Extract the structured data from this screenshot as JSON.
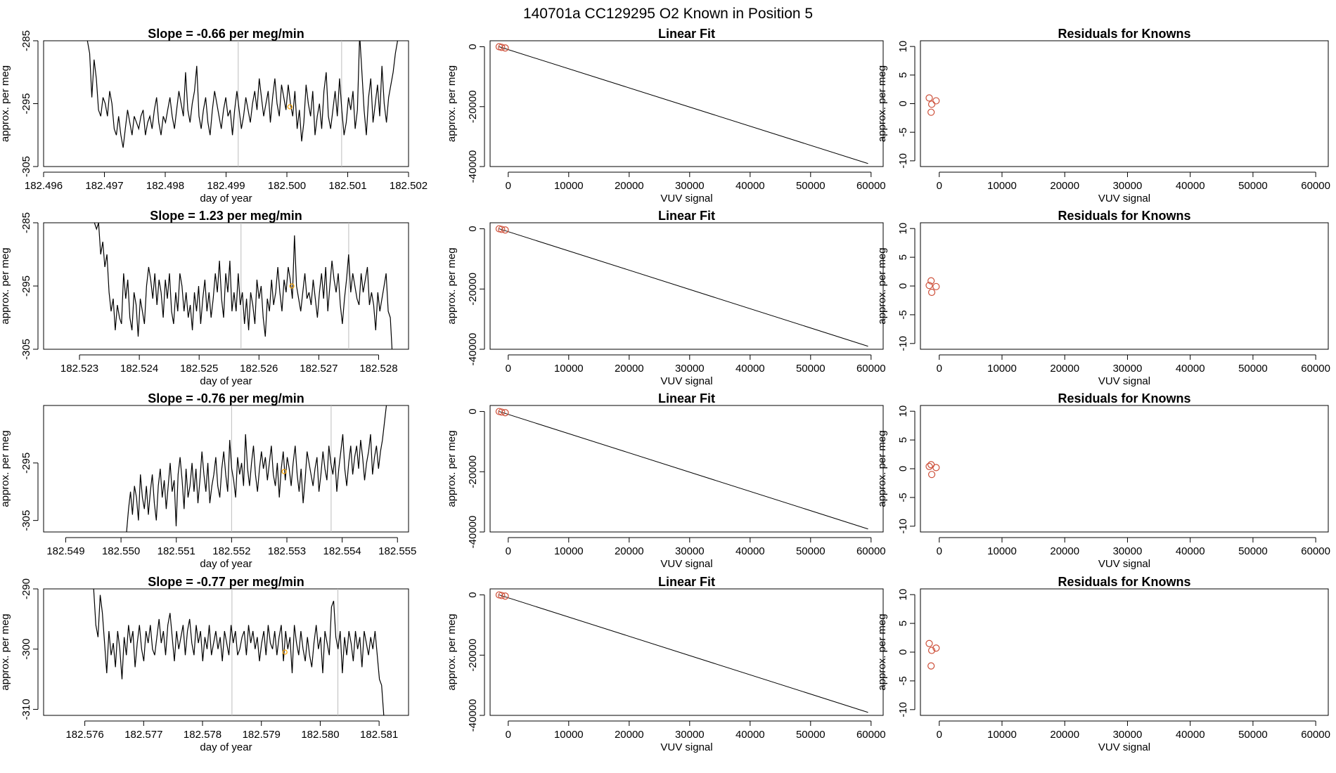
{
  "page_title": "140701a      CC129295    O2 Known in Position  5",
  "colors": {
    "line": "#000000",
    "marker": "#cd4f39",
    "highlight": "#ffa500",
    "vline": "#bdbdbd",
    "axis": "#000000"
  },
  "chart_data": [
    {
      "type": "line",
      "title": "Slope =  -0.66  per meg/min",
      "xlabel": "day of year",
      "ylabel": "approx. per meg",
      "xlim": [
        182.496,
        182.502
      ],
      "ylim": [
        -305,
        -285
      ],
      "xticks": [
        "182.496",
        "182.497",
        "182.498",
        "182.499",
        "182.500",
        "182.501",
        "182.502"
      ],
      "yticks": [
        "-285",
        "-295",
        "-305"
      ],
      "vlines": [
        182.4992,
        182.5009
      ],
      "highlight_point": [
        182.50005,
        -295.5
      ],
      "series": [
        {
          "name": "trace",
          "x_start": 182.49672,
          "x_end": 182.50182,
          "values": [
            -285,
            -287,
            -294,
            -288,
            -291,
            -296,
            -297,
            -294,
            -295,
            -297,
            -293,
            -295,
            -299,
            -300,
            -297,
            -300,
            -302,
            -299,
            -296,
            -298,
            -300,
            -297,
            -298,
            -299,
            -297,
            -296,
            -300,
            -298,
            -297,
            -299,
            -296,
            -294,
            -298,
            -300,
            -297,
            -298,
            -296,
            -294,
            -297,
            -299,
            -296,
            -293,
            -295,
            -297,
            -290,
            -296,
            -298,
            -295,
            -293,
            -289,
            -297,
            -299,
            -296,
            -294,
            -298,
            -300,
            -296,
            -293,
            -295,
            -297,
            -299,
            -296,
            -294,
            -297,
            -296,
            -300,
            -296,
            -293,
            -296,
            -299,
            -297,
            -294,
            -296,
            -298,
            -295,
            -293,
            -296,
            -291,
            -294,
            -297,
            -295,
            -293,
            -298,
            -294,
            -291,
            -295,
            -297,
            -292,
            -294,
            -296,
            -292,
            -295,
            -297,
            -293,
            -299,
            -296,
            -301,
            -298,
            -292,
            -295,
            -297,
            -293,
            -300,
            -297,
            -295,
            -299,
            -293,
            -290,
            -297,
            -299,
            -296,
            -293,
            -297,
            -291,
            -296,
            -300,
            -298,
            -294,
            -296,
            -293,
            -299,
            -296,
            -284,
            -290,
            -296,
            -300,
            -294,
            -291,
            -298,
            -295,
            -292,
            -297,
            -289,
            -295,
            -298,
            -294,
            -292,
            -290,
            -287,
            -285
          ]
        }
      ]
    },
    {
      "type": "scatter",
      "title": "Linear Fit",
      "xlabel": "VUV signal",
      "ylabel": "approx. per meg",
      "xlim": [
        -3000,
        62000
      ],
      "ylim": [
        -40000,
        2000
      ],
      "xticks": [
        0,
        10000,
        20000,
        30000,
        40000,
        50000,
        60000
      ],
      "yticks": [
        0,
        -20000,
        -40000
      ],
      "points": [
        [
          -1500,
          0
        ],
        [
          -1100,
          -200
        ],
        [
          -500,
          -400
        ]
      ],
      "fit_line": [
        [
          -1500,
          0
        ],
        [
          59500,
          -39000
        ]
      ]
    },
    {
      "type": "scatter",
      "title": "Residuals for Knowns",
      "xlabel": "VUV signal",
      "ylabel": "approx. per meg",
      "xlim": [
        -3000,
        62000
      ],
      "ylim": [
        -11,
        11
      ],
      "xticks": [
        0,
        10000,
        20000,
        30000,
        40000,
        50000,
        60000
      ],
      "yticks": [
        10,
        5,
        0,
        -5,
        -10
      ],
      "points": [
        [
          -1600,
          1.0
        ],
        [
          -1300,
          -1.5
        ],
        [
          -1200,
          -0.1
        ],
        [
          -500,
          0.5
        ]
      ]
    },
    {
      "type": "line",
      "title": "Slope =  1.23  per meg/min",
      "xlabel": "day of year",
      "ylabel": "approx. per meg",
      "xlim": [
        182.5224,
        182.5285
      ],
      "ylim": [
        -305,
        -285
      ],
      "xticks": [
        "182.523",
        "182.524",
        "182.525",
        "182.526",
        "182.527",
        "182.528"
      ],
      "yticks": [
        "-285",
        "-295",
        "-305"
      ],
      "vlines": [
        182.5257,
        182.5275
      ],
      "highlight_point": [
        182.52655,
        -295.0
      ],
      "series": [
        {
          "name": "trace",
          "x_start": 182.52325,
          "x_end": 182.52823,
          "values": [
            -285,
            -286,
            -285,
            -290,
            -288,
            -292,
            -290,
            -296,
            -299,
            -297,
            -302,
            -298,
            -300,
            -301,
            -293,
            -297,
            -294,
            -300,
            -302,
            -296,
            -298,
            -303,
            -297,
            -299,
            -301,
            -295,
            -292,
            -294,
            -297,
            -293,
            -298,
            -294,
            -296,
            -300,
            -294,
            -297,
            -293,
            -299,
            -301,
            -296,
            -299,
            -293,
            -295,
            -299,
            -296,
            -300,
            -298,
            -302,
            -296,
            -299,
            -295,
            -301,
            -297,
            -294,
            -299,
            -296,
            -300,
            -297,
            -293,
            -296,
            -291,
            -297,
            -300,
            -293,
            -296,
            -291,
            -299,
            -296,
            -299,
            -293,
            -298,
            -296,
            -301,
            -297,
            -302,
            -296,
            -298,
            -301,
            -294,
            -297,
            -295,
            -300,
            -303,
            -297,
            -299,
            -294,
            -298,
            -296,
            -292,
            -296,
            -299,
            -294,
            -296,
            -292,
            -294,
            -297,
            -287,
            -295,
            -297,
            -299,
            -296,
            -293,
            -297,
            -296,
            -298,
            -294,
            -297,
            -300,
            -296,
            -293,
            -297,
            -292,
            -299,
            -295,
            -291,
            -294,
            -296,
            -293,
            -298,
            -301,
            -297,
            -294,
            -290,
            -296,
            -293,
            -295,
            -297,
            -298,
            -293,
            -296,
            -294,
            -292,
            -298,
            -296,
            -298,
            -302,
            -296,
            -299,
            -297,
            -295,
            -293,
            -299,
            -300,
            -306
          ]
        }
      ]
    },
    {
      "type": "scatter",
      "title": "Linear Fit",
      "xlabel": "VUV signal",
      "ylabel": "approx. per meg",
      "xlim": [
        -3000,
        62000
      ],
      "ylim": [
        -40000,
        2000
      ],
      "xticks": [
        0,
        10000,
        20000,
        30000,
        40000,
        50000,
        60000
      ],
      "yticks": [
        0,
        -20000,
        -40000
      ],
      "points": [
        [
          -1500,
          0
        ],
        [
          -1100,
          -200
        ],
        [
          -500,
          -400
        ]
      ],
      "fit_line": [
        [
          -1500,
          0
        ],
        [
          59500,
          -39000
        ]
      ]
    },
    {
      "type": "scatter",
      "title": "Residuals for Knowns",
      "xlabel": "VUV signal",
      "ylabel": "approx. per meg",
      "xlim": [
        -3000,
        62000
      ],
      "ylim": [
        -11,
        11
      ],
      "xticks": [
        0,
        10000,
        20000,
        30000,
        40000,
        50000,
        60000
      ],
      "yticks": [
        10,
        5,
        0,
        -5,
        -10
      ],
      "points": [
        [
          -1600,
          0.1
        ],
        [
          -1300,
          0.9
        ],
        [
          -1200,
          -1.1
        ],
        [
          -500,
          -0.1
        ]
      ]
    },
    {
      "type": "line",
      "title": "Slope =  -0.76  per meg/min",
      "xlabel": "day of year",
      "ylabel": "approx. per meg",
      "xlim": [
        182.5486,
        182.5552
      ],
      "ylim": [
        -307,
        -285
      ],
      "xticks": [
        "182.549",
        "182.550",
        "182.551",
        "182.552",
        "182.553",
        "182.554",
        "182.555"
      ],
      "yticks": [
        "-295",
        "-305"
      ],
      "vlines": [
        182.552,
        182.5538
      ],
      "highlight_point": [
        182.55295,
        -296.5
      ],
      "series": [
        {
          "name": "trace",
          "x_start": 182.5501,
          "x_end": 182.5548,
          "values": [
            -307,
            -303,
            -300,
            -304,
            -299,
            -301,
            -305,
            -297,
            -301,
            -303,
            -299,
            -304,
            -300,
            -297,
            -302,
            -305,
            -299,
            -296,
            -301,
            -298,
            -303,
            -299,
            -295,
            -300,
            -298,
            -306,
            -297,
            -294,
            -298,
            -303,
            -296,
            -301,
            -299,
            -295,
            -300,
            -296,
            -302,
            -298,
            -293,
            -297,
            -300,
            -295,
            -302,
            -299,
            -297,
            -294,
            -299,
            -301,
            -296,
            -293,
            -297,
            -300,
            -291,
            -296,
            -298,
            -301,
            -294,
            -297,
            -295,
            -299,
            -290,
            -296,
            -299,
            -295,
            -292,
            -297,
            -300,
            -296,
            -293,
            -296,
            -294,
            -298,
            -295,
            -292,
            -297,
            -299,
            -295,
            -301,
            -296,
            -293,
            -298,
            -294,
            -296,
            -299,
            -295,
            -292,
            -297,
            -300,
            -296,
            -302,
            -298,
            -293,
            -295,
            -297,
            -299,
            -296,
            -294,
            -300,
            -297,
            -293,
            -296,
            -298,
            -292,
            -295,
            -297,
            -294,
            -300,
            -296,
            -293,
            -290,
            -296,
            -299,
            -295,
            -292,
            -297,
            -294,
            -292,
            -296,
            -291,
            -294,
            -298,
            -295,
            -293,
            -290,
            -297,
            -294,
            -292,
            -296,
            -293,
            -291,
            -288,
            -285
          ]
        }
      ]
    },
    {
      "type": "scatter",
      "title": "Linear Fit",
      "xlabel": "VUV signal",
      "ylabel": "approx. per meg",
      "xlim": [
        -3000,
        62000
      ],
      "ylim": [
        -40000,
        2000
      ],
      "xticks": [
        0,
        10000,
        20000,
        30000,
        40000,
        50000,
        60000
      ],
      "yticks": [
        0,
        -20000,
        -40000
      ],
      "points": [
        [
          -1500,
          0
        ],
        [
          -1100,
          -200
        ],
        [
          -500,
          -400
        ]
      ],
      "fit_line": [
        [
          -1500,
          0
        ],
        [
          59500,
          -39000
        ]
      ]
    },
    {
      "type": "scatter",
      "title": "Residuals for Knowns",
      "xlabel": "VUV signal",
      "ylabel": "approx. per meg",
      "xlim": [
        -3000,
        62000
      ],
      "ylim": [
        -11,
        11
      ],
      "xticks": [
        0,
        10000,
        20000,
        30000,
        40000,
        50000,
        60000
      ],
      "yticks": [
        10,
        5,
        0,
        -5,
        -10
      ],
      "points": [
        [
          -1600,
          0.4
        ],
        [
          -1300,
          0.7
        ],
        [
          -1200,
          -1.0
        ],
        [
          -500,
          0.2
        ]
      ]
    },
    {
      "type": "line",
      "title": "Slope =  -0.77  per meg/min",
      "xlabel": "day of year",
      "ylabel": "approx. per meg",
      "xlim": [
        182.5753,
        182.5815
      ],
      "ylim": [
        -311,
        -290
      ],
      "xticks": [
        "182.576",
        "182.577",
        "182.578",
        "182.579",
        "182.580",
        "182.581"
      ],
      "yticks": [
        "-290",
        "-300",
        "-310"
      ],
      "vlines": [
        182.5785,
        182.5803
      ],
      "highlight_point": [
        182.5794,
        -300.5
      ],
      "series": [
        {
          "name": "trace",
          "x_start": 182.57615,
          "x_end": 182.58108,
          "values": [
            -290,
            -296,
            -298,
            -291,
            -294,
            -299,
            -304,
            -297,
            -301,
            -299,
            -303,
            -297,
            -300,
            -305,
            -298,
            -301,
            -296,
            -299,
            -297,
            -303,
            -299,
            -296,
            -300,
            -302,
            -297,
            -299,
            -296,
            -300,
            -301,
            -298,
            -295,
            -299,
            -297,
            -301,
            -296,
            -294,
            -298,
            -302,
            -297,
            -300,
            -298,
            -296,
            -301,
            -297,
            -295,
            -299,
            -301,
            -296,
            -299,
            -297,
            -302,
            -298,
            -300,
            -296,
            -301,
            -299,
            -297,
            -300,
            -298,
            -302,
            -297,
            -299,
            -301,
            -296,
            -299,
            -297,
            -301,
            -300,
            -298,
            -297,
            -301,
            -296,
            -299,
            -297,
            -300,
            -298,
            -302,
            -299,
            -297,
            -301,
            -296,
            -299,
            -300,
            -297,
            -301,
            -298,
            -296,
            -302,
            -297,
            -300,
            -298,
            -304,
            -296,
            -299,
            -301,
            -297,
            -300,
            -302,
            -298,
            -301,
            -303,
            -299,
            -296,
            -300,
            -298,
            -304,
            -297,
            -299,
            -301,
            -293,
            -292,
            -298,
            -300,
            -297,
            -304,
            -298,
            -301,
            -297,
            -299,
            -302,
            -297,
            -300,
            -298,
            -303,
            -297,
            -299,
            -301,
            -298,
            -300,
            -297,
            -301,
            -305,
            -306,
            -311
          ]
        }
      ]
    },
    {
      "type": "scatter",
      "title": "Linear Fit",
      "xlabel": "VUV signal",
      "ylabel": "approx. per meg",
      "xlim": [
        -3000,
        62000
      ],
      "ylim": [
        -40000,
        2000
      ],
      "xticks": [
        0,
        10000,
        20000,
        30000,
        40000,
        50000,
        60000
      ],
      "yticks": [
        0,
        -20000,
        -40000
      ],
      "points": [
        [
          -1500,
          0
        ],
        [
          -1100,
          -200
        ],
        [
          -500,
          -400
        ]
      ],
      "fit_line": [
        [
          -1500,
          0
        ],
        [
          59500,
          -39000
        ]
      ]
    },
    {
      "type": "scatter",
      "title": "Residuals for Knowns",
      "xlabel": "VUV signal",
      "ylabel": "approx. per meg",
      "xlim": [
        -3000,
        62000
      ],
      "ylim": [
        -11,
        11
      ],
      "xticks": [
        0,
        10000,
        20000,
        30000,
        40000,
        50000,
        60000
      ],
      "yticks": [
        10,
        5,
        0,
        -5,
        -10
      ],
      "points": [
        [
          -1600,
          1.5
        ],
        [
          -1300,
          -2.4
        ],
        [
          -1200,
          0.3
        ],
        [
          -500,
          0.7
        ]
      ]
    }
  ]
}
